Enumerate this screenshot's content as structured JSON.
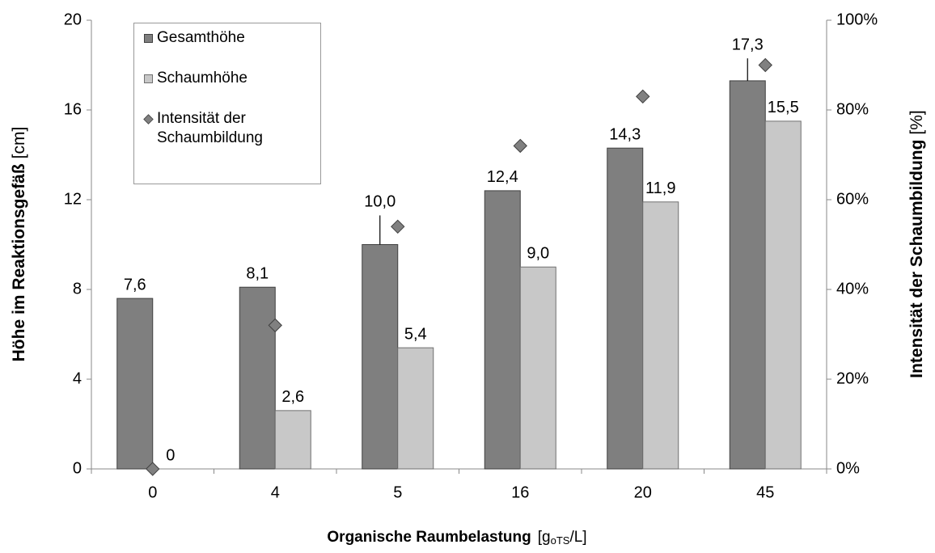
{
  "chart_data": {
    "type": "bar",
    "categories": [
      "0",
      "4",
      "5",
      "16",
      "20",
      "45"
    ],
    "x_label": [
      "Organische Raumbelastung",
      "[g",
      "oTS",
      "/L]"
    ],
    "y_label": [
      "Höhe im Reaktionsgefäß",
      "[cm]"
    ],
    "y2_label": [
      "Intensität der Schaumbildung",
      "[%]"
    ],
    "ylim": [
      0,
      20
    ],
    "yticks": [
      0,
      4,
      8,
      12,
      16,
      20
    ],
    "y2lim": [
      0,
      100
    ],
    "y2ticks": [
      {
        "value": 0,
        "label": "0%"
      },
      {
        "value": 20,
        "label": "20%"
      },
      {
        "value": 40,
        "label": "40%"
      },
      {
        "value": 60,
        "label": "60%"
      },
      {
        "value": 80,
        "label": "80%"
      },
      {
        "value": 100,
        "label": "100%"
      }
    ],
    "series": [
      {
        "name": "Gesamthöhe",
        "color": "#7f7f7f",
        "values": [
          7.6,
          8.1,
          10.0,
          12.4,
          14.3,
          17.3
        ],
        "value_labels": [
          "7,6",
          "8,1",
          "10,0",
          "12,4",
          "14,3",
          "17,3"
        ],
        "errors": [
          null,
          null,
          1.3,
          null,
          null,
          1.0
        ]
      },
      {
        "name": "Schaumhöhe",
        "color": "#c8c8c8",
        "values": [
          0,
          2.6,
          5.4,
          9.0,
          11.9,
          15.5
        ],
        "value_labels": [
          "0",
          "2,6",
          "5,4",
          "9,0",
          "11,9",
          "15,5"
        ]
      },
      {
        "name": "Intensität der Schaumbildung",
        "color": "#808080",
        "type": "scatter",
        "axis": "y2",
        "values": [
          0,
          32,
          54,
          72,
          83,
          90
        ]
      }
    ]
  }
}
